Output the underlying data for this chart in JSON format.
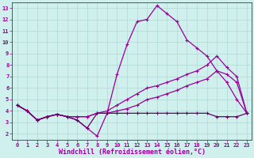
{
  "xlabel": "Windchill (Refroidissement éolien,°C)",
  "bg_color": "#cff0ec",
  "grid_color": "#aed8d2",
  "line_color1": "#990099",
  "line_color2": "#990099",
  "line_color3": "#990099",
  "line_color4": "#660066",
  "xlim": [
    -0.5,
    23.5
  ],
  "ylim": [
    1.5,
    13.5
  ],
  "xticks": [
    0,
    1,
    2,
    3,
    4,
    5,
    6,
    7,
    8,
    9,
    10,
    11,
    12,
    13,
    14,
    15,
    16,
    17,
    18,
    19,
    20,
    21,
    22,
    23
  ],
  "yticks": [
    2,
    3,
    4,
    5,
    6,
    7,
    8,
    9,
    10,
    11,
    12,
    13
  ],
  "line1_x": [
    0,
    1,
    2,
    3,
    4,
    5,
    6,
    7,
    8,
    9,
    10,
    11,
    12,
    13,
    14,
    15,
    16,
    17,
    18,
    19,
    20,
    21,
    22,
    23
  ],
  "line1_y": [
    4.5,
    4.0,
    3.2,
    3.5,
    3.7,
    3.5,
    3.2,
    2.5,
    1.8,
    3.8,
    7.2,
    9.8,
    11.8,
    12.0,
    13.2,
    12.5,
    11.8,
    10.2,
    9.5,
    8.8,
    7.5,
    6.5,
    5.0,
    3.8
  ],
  "line2_x": [
    0,
    1,
    2,
    3,
    4,
    5,
    6,
    7,
    8,
    9,
    10,
    11,
    12,
    13,
    14,
    15,
    16,
    17,
    18,
    19,
    20,
    21,
    22,
    23
  ],
  "line2_y": [
    4.5,
    4.0,
    3.2,
    3.5,
    3.7,
    3.5,
    3.5,
    3.5,
    3.8,
    4.0,
    4.5,
    5.0,
    5.5,
    6.0,
    6.2,
    6.5,
    6.8,
    7.2,
    7.5,
    8.0,
    8.8,
    7.8,
    7.0,
    3.8
  ],
  "line3_x": [
    0,
    1,
    2,
    3,
    4,
    5,
    6,
    7,
    8,
    9,
    10,
    11,
    12,
    13,
    14,
    15,
    16,
    17,
    18,
    19,
    20,
    21,
    22,
    23
  ],
  "line3_y": [
    4.5,
    4.0,
    3.2,
    3.5,
    3.7,
    3.5,
    3.5,
    3.5,
    3.8,
    3.8,
    4.0,
    4.2,
    4.5,
    5.0,
    5.2,
    5.5,
    5.8,
    6.2,
    6.5,
    6.8,
    7.5,
    7.2,
    6.5,
    3.8
  ],
  "line4_x": [
    0,
    1,
    2,
    3,
    4,
    5,
    6,
    7,
    8,
    9,
    10,
    11,
    12,
    13,
    14,
    15,
    16,
    17,
    18,
    19,
    20,
    21,
    22,
    23
  ],
  "line4_y": [
    4.5,
    4.0,
    3.2,
    3.5,
    3.7,
    3.5,
    3.2,
    2.5,
    3.8,
    3.8,
    3.8,
    3.8,
    3.8,
    3.8,
    3.8,
    3.8,
    3.8,
    3.8,
    3.8,
    3.8,
    3.5,
    3.5,
    3.5,
    3.8
  ],
  "marker": "+",
  "markersize": 3,
  "linewidth": 0.9,
  "tick_fontsize": 5.0,
  "xlabel_fontsize": 6.0
}
